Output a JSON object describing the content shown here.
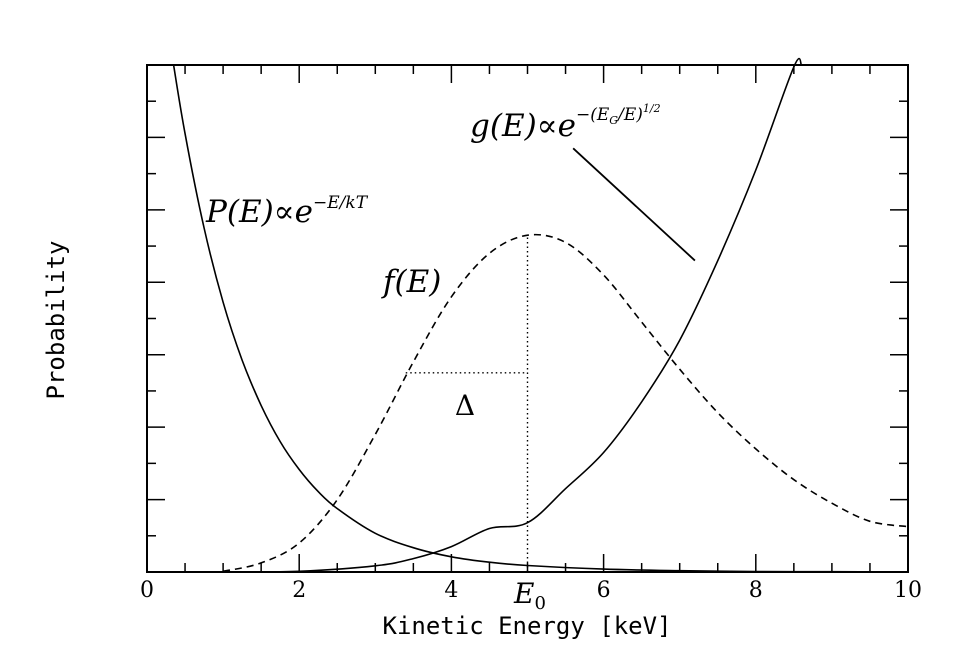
{
  "chart_data": {
    "type": "line",
    "title": "",
    "xlabel": "Kinetic Energy [keV]",
    "ylabel": "Probability",
    "xlim": [
      0,
      10
    ],
    "ylim": [
      0,
      14
    ],
    "x_ticks": [
      "0",
      "2",
      "4",
      "6",
      "8",
      "10"
    ],
    "grid": false,
    "series": [
      {
        "name": "P(E)∝e^{-E/kT}",
        "style": "solid",
        "x": [
          0.35,
          0.5,
          0.75,
          1.0,
          1.25,
          1.5,
          1.75,
          2.0,
          2.25,
          2.5,
          3.0,
          3.5,
          4.0,
          4.5,
          5.0,
          6.0,
          7.0,
          8.0,
          9.0,
          10.0
        ],
        "y": [
          14.0,
          12.1,
          9.5,
          7.45,
          5.85,
          4.6,
          3.6,
          2.83,
          2.22,
          1.75,
          1.07,
          0.67,
          0.42,
          0.27,
          0.18,
          0.08,
          0.035,
          0.015,
          0.007,
          0.003
        ]
      },
      {
        "name": "g(E)∝e^{-(E_G/E)^{1/2}}",
        "style": "solid",
        "x": [
          0.0,
          1.0,
          2.0,
          3.0,
          3.5,
          4.0,
          4.5,
          5.0,
          5.5,
          6.0,
          6.5,
          7.0,
          7.5,
          8.0,
          8.5,
          8.6
        ],
        "y": [
          0.0,
          0.0,
          0.02,
          0.17,
          0.37,
          0.7,
          1.2,
          1.36,
          2.3,
          3.3,
          4.7,
          6.4,
          8.6,
          11.1,
          13.95,
          14.0
        ]
      },
      {
        "name": "f(E)",
        "style": "dashed",
        "x": [
          1.0,
          1.5,
          2.0,
          2.5,
          3.0,
          3.5,
          4.0,
          4.5,
          5.0,
          5.5,
          6.0,
          6.5,
          7.0,
          7.5,
          8.0,
          8.5,
          9.0,
          9.5,
          10.0
        ],
        "y": [
          0.02,
          0.25,
          0.8,
          2.0,
          3.8,
          5.8,
          7.6,
          8.8,
          9.3,
          9.1,
          8.2,
          6.9,
          5.6,
          4.4,
          3.4,
          2.55,
          1.9,
          1.4,
          1.25
        ]
      }
    ],
    "annotations": [
      {
        "text": "Δ",
        "x": 4.2,
        "y": 4.6
      },
      {
        "text": "E0",
        "x": 5.0,
        "y": -0.9
      }
    ],
    "reference_lines": [
      {
        "style": "dotted",
        "kind": "vertical",
        "x": 5.0,
        "y_from": 0.0,
        "y_to": 9.3
      },
      {
        "style": "dotted",
        "kind": "horizontal",
        "y": 5.5,
        "x_from": 3.4,
        "x_to": 5.0
      }
    ],
    "pointer_line": {
      "style": "solid",
      "x_from": 5.6,
      "y_from": 11.7,
      "x_to": 7.2,
      "y_to": 8.6
    }
  }
}
